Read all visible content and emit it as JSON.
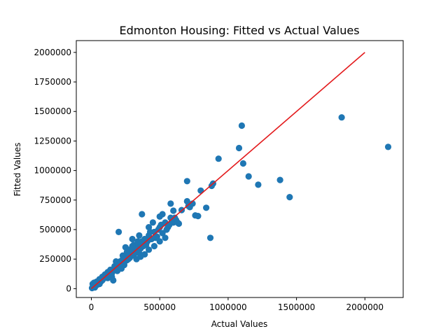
{
  "chart_data": {
    "type": "scatter",
    "title": "Edmonton Housing: Fitted vs Actual Values",
    "xlabel": "Actual Values",
    "ylabel": "Fitted Values",
    "xlim": [
      -110000,
      2280000
    ],
    "ylim": [
      -75000,
      2100000
    ],
    "xticks": [
      0,
      500000,
      1000000,
      1500000,
      2000000
    ],
    "xtick_labels": [
      "0",
      "500000",
      "1000000",
      "1500000",
      "2000000"
    ],
    "yticks": [
      0,
      250000,
      500000,
      750000,
      1000000,
      1250000,
      1500000,
      1750000,
      2000000
    ],
    "ytick_labels": [
      "0",
      "250000",
      "500000",
      "750000",
      "1000000",
      "1250000",
      "1500000",
      "1750000",
      "2000000"
    ],
    "grid": false,
    "point_color": "#1f77b4",
    "line_color": "#e31a1c",
    "reference_line": {
      "x": [
        0,
        2000000
      ],
      "y": [
        0,
        2000000
      ]
    },
    "points": [
      [
        5000,
        5000
      ],
      [
        10000,
        40000
      ],
      [
        15000,
        20000
      ],
      [
        20000,
        50000
      ],
      [
        30000,
        30000
      ],
      [
        40000,
        60000
      ],
      [
        50000,
        45000
      ],
      [
        60000,
        80000
      ],
      [
        70000,
        60000
      ],
      [
        80000,
        100000
      ],
      [
        90000,
        85000
      ],
      [
        100000,
        120000
      ],
      [
        110000,
        95000
      ],
      [
        120000,
        140000
      ],
      [
        130000,
        115000
      ],
      [
        140000,
        160000
      ],
      [
        150000,
        130000
      ],
      [
        160000,
        150000
      ],
      [
        170000,
        190000
      ],
      [
        180000,
        160000
      ],
      [
        190000,
        210000
      ],
      [
        200000,
        180000
      ],
      [
        210000,
        230000
      ],
      [
        220000,
        200000
      ],
      [
        230000,
        250000
      ],
      [
        240000,
        220000
      ],
      [
        250000,
        270000
      ],
      [
        260000,
        240000
      ],
      [
        270000,
        300000
      ],
      [
        280000,
        260000
      ],
      [
        290000,
        320000
      ],
      [
        300000,
        280000
      ],
      [
        310000,
        340000
      ],
      [
        320000,
        300000
      ],
      [
        330000,
        360000
      ],
      [
        340000,
        320000
      ],
      [
        350000,
        380000
      ],
      [
        360000,
        340000
      ],
      [
        370000,
        400000
      ],
      [
        380000,
        360000
      ],
      [
        390000,
        420000
      ],
      [
        400000,
        370000
      ],
      [
        420000,
        450000
      ],
      [
        440000,
        420000
      ],
      [
        460000,
        480000
      ],
      [
        480000,
        440000
      ],
      [
        500000,
        520000
      ],
      [
        520000,
        470000
      ],
      [
        540000,
        560000
      ],
      [
        560000,
        520000
      ],
      [
        580000,
        600000
      ],
      [
        600000,
        560000
      ],
      [
        620000,
        580000
      ],
      [
        640000,
        550000
      ],
      [
        200000,
        480000
      ],
      [
        250000,
        350000
      ],
      [
        300000,
        420000
      ],
      [
        350000,
        450000
      ],
      [
        370000,
        630000
      ],
      [
        420000,
        520000
      ],
      [
        450000,
        560000
      ],
      [
        500000,
        610000
      ],
      [
        520000,
        630000
      ],
      [
        580000,
        720000
      ],
      [
        600000,
        660000
      ],
      [
        660000,
        665000
      ],
      [
        700000,
        740000
      ],
      [
        710000,
        700000
      ],
      [
        720000,
        690000
      ],
      [
        740000,
        720000
      ],
      [
        760000,
        620000
      ],
      [
        780000,
        615000
      ],
      [
        800000,
        830000
      ],
      [
        840000,
        685000
      ],
      [
        870000,
        430000
      ],
      [
        880000,
        870000
      ],
      [
        890000,
        890000
      ],
      [
        700000,
        910000
      ],
      [
        930000,
        1100000
      ],
      [
        1080000,
        1190000
      ],
      [
        1100000,
        1380000
      ],
      [
        1110000,
        1060000
      ],
      [
        1150000,
        950000
      ],
      [
        1220000,
        880000
      ],
      [
        1380000,
        920000
      ],
      [
        1450000,
        775000
      ],
      [
        1830000,
        1450000
      ],
      [
        2170000,
        1200000
      ],
      [
        330000,
        250000
      ],
      [
        360000,
        270000
      ],
      [
        390000,
        290000
      ],
      [
        420000,
        330000
      ],
      [
        460000,
        360000
      ],
      [
        500000,
        400000
      ],
      [
        540000,
        430000
      ],
      [
        280000,
        330000
      ],
      [
        310000,
        370000
      ],
      [
        340000,
        400000
      ],
      [
        260000,
        310000
      ],
      [
        230000,
        280000
      ],
      [
        180000,
        230000
      ],
      [
        150000,
        100000
      ],
      [
        160000,
        70000
      ],
      [
        190000,
        150000
      ],
      [
        220000,
        170000
      ],
      [
        410000,
        400000
      ],
      [
        430000,
        480000
      ],
      [
        470000,
        430000
      ],
      [
        490000,
        500000
      ],
      [
        510000,
        540000
      ],
      [
        550000,
        500000
      ],
      [
        570000,
        540000
      ],
      [
        590000,
        580000
      ],
      [
        610000,
        600000
      ],
      [
        630000,
        560000
      ],
      [
        120000,
        90000
      ],
      [
        80000,
        70000
      ],
      [
        60000,
        40000
      ],
      [
        40000,
        30000
      ],
      [
        25000,
        10000
      ],
      [
        300000,
        360000
      ],
      [
        270000,
        250000
      ],
      [
        240000,
        200000
      ],
      [
        210000,
        210000
      ],
      [
        350000,
        300000
      ]
    ]
  }
}
